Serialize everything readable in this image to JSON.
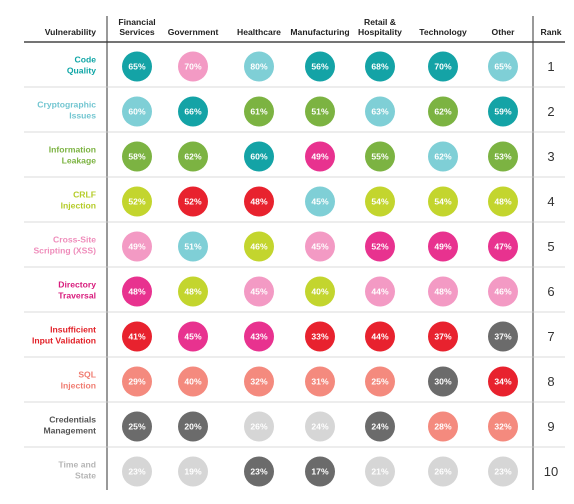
{
  "chart_data": {
    "type": "table",
    "corner_label": "Vulnerability",
    "rank_label": "Rank",
    "columns": [
      [
        "Financial",
        "Services"
      ],
      [
        "Government"
      ],
      [
        "Healthcare"
      ],
      [
        "Manufacturing"
      ],
      [
        "Retail &",
        "Hospitality"
      ],
      [
        "Technology"
      ],
      [
        "Other"
      ]
    ],
    "rows": [
      {
        "label": [
          "Code",
          "Quality"
        ],
        "label_color": "#0fa6a6",
        "rank": "1",
        "values": [
          "65%",
          "70%",
          "80%",
          "56%",
          "68%",
          "70%",
          "65%"
        ],
        "colors": [
          "#14a3a6",
          "#f39ac4",
          "#7fcfd6",
          "#14a3a6",
          "#14a3a6",
          "#14a3a6",
          "#7fcfd6"
        ]
      },
      {
        "label": [
          "Cryptographic",
          "Issues"
        ],
        "label_color": "#73c6d1",
        "rank": "2",
        "values": [
          "60%",
          "66%",
          "61%",
          "51%",
          "63%",
          "62%",
          "59%"
        ],
        "colors": [
          "#7fcfd6",
          "#14a3a6",
          "#7cb342",
          "#7cb342",
          "#7fcfd6",
          "#7cb342",
          "#14a3a6"
        ]
      },
      {
        "label": [
          "Information",
          "Leakage"
        ],
        "label_color": "#7cb342",
        "rank": "3",
        "values": [
          "58%",
          "62%",
          "60%",
          "49%",
          "55%",
          "62%",
          "53%"
        ],
        "colors": [
          "#7cb342",
          "#7cb342",
          "#14a3a6",
          "#e8328f",
          "#7cb342",
          "#7fcfd6",
          "#7cb342"
        ]
      },
      {
        "label": [
          "CRLF",
          "Injection"
        ],
        "label_color": "#b5cc29",
        "rank": "4",
        "values": [
          "52%",
          "52%",
          "48%",
          "45%",
          "54%",
          "54%",
          "48%"
        ],
        "colors": [
          "#c3d52e",
          "#e8222e",
          "#e8222e",
          "#7fcfd6",
          "#c3d52e",
          "#c3d52e",
          "#c3d52e"
        ]
      },
      {
        "label": [
          "Cross-Site",
          "Scripting (XSS)"
        ],
        "label_color": "#ef8dbb",
        "rank": "5",
        "values": [
          "49%",
          "51%",
          "46%",
          "45%",
          "52%",
          "49%",
          "47%"
        ],
        "colors": [
          "#f39ac4",
          "#7fcfd6",
          "#c3d52e",
          "#f39ac4",
          "#e8328f",
          "#e8328f",
          "#e8328f"
        ]
      },
      {
        "label": [
          "Directory",
          "Traversal"
        ],
        "label_color": "#d81b7c",
        "rank": "6",
        "values": [
          "48%",
          "48%",
          "45%",
          "40%",
          "44%",
          "48%",
          "46%"
        ],
        "colors": [
          "#e8328f",
          "#c3d52e",
          "#f39ac4",
          "#c3d52e",
          "#f39ac4",
          "#f39ac4",
          "#f39ac4"
        ]
      },
      {
        "label": [
          "Insufficient",
          "Input Validation"
        ],
        "label_color": "#e21f26",
        "rank": "7",
        "values": [
          "41%",
          "45%",
          "43%",
          "33%",
          "44%",
          "37%",
          "37%"
        ],
        "colors": [
          "#e8222e",
          "#e8328f",
          "#e8328f",
          "#e8222e",
          "#e8222e",
          "#e8222e",
          "#6b6b6b"
        ]
      },
      {
        "label": [
          "SQL",
          "Injection"
        ],
        "label_color": "#f07d72",
        "rank": "8",
        "values": [
          "29%",
          "40%",
          "32%",
          "31%",
          "25%",
          "30%",
          "34%"
        ],
        "colors": [
          "#f48a7e",
          "#f48a7e",
          "#f48a7e",
          "#f48a7e",
          "#f48a7e",
          "#6b6b6b",
          "#e8222e"
        ]
      },
      {
        "label": [
          "Credentials",
          "Management"
        ],
        "label_color": "#555555",
        "rank": "9",
        "values": [
          "25%",
          "20%",
          "26%",
          "24%",
          "24%",
          "28%",
          "32%"
        ],
        "colors": [
          "#6b6b6b",
          "#6b6b6b",
          "#d6d6d6",
          "#d6d6d6",
          "#6b6b6b",
          "#f48a7e",
          "#f48a7e"
        ]
      },
      {
        "label": [
          "Time and",
          "State"
        ],
        "label_color": "#b5b5b5",
        "rank": "10",
        "values": [
          "23%",
          "19%",
          "23%",
          "17%",
          "21%",
          "26%",
          "23%"
        ],
        "colors": [
          "#d6d6d6",
          "#d6d6d6",
          "#6b6b6b",
          "#6b6b6b",
          "#d6d6d6",
          "#d6d6d6",
          "#d6d6d6"
        ]
      }
    ]
  }
}
